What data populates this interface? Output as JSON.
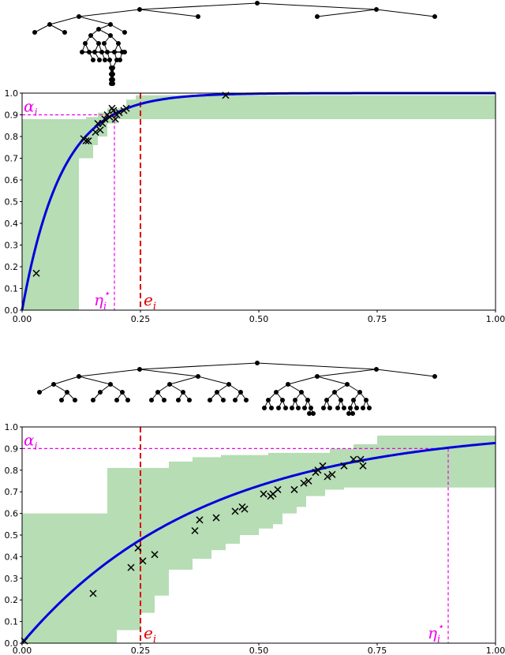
{
  "colors": {
    "fit_line": "#0000dd",
    "band": "#b6ddb4",
    "points": "#000000",
    "alpha_line": "#ee00ee",
    "e_line": "#dd0000"
  },
  "chart_data": [
    {
      "type": "line",
      "xlim": [
        0,
        1
      ],
      "ylim": [
        0,
        1
      ],
      "x_ticks": [
        "0.00",
        "0.25",
        "0.50",
        "0.75",
        "1.00"
      ],
      "y_ticks": [
        "0.0",
        "0.1",
        "0.2",
        "0.3",
        "0.4",
        "0.5",
        "0.6",
        "0.7",
        "0.8",
        "0.9",
        "1.0"
      ],
      "curve_rate": 12,
      "alpha": 0.9,
      "alpha_label": "α",
      "alpha_sub": "i",
      "eta_star": 0.195,
      "eta_label": "η",
      "eta_sub": "i",
      "eta_sup": "⋆",
      "e": 0.25,
      "e_label": "e",
      "e_sub": "i",
      "band_upper": [
        [
          0,
          0.88
        ],
        [
          0.12,
          0.88
        ],
        [
          0.12,
          0.88
        ],
        [
          0.135,
          0.88
        ],
        [
          0.135,
          0.89
        ],
        [
          0.16,
          0.89
        ],
        [
          0.16,
          0.91
        ],
        [
          0.18,
          0.91
        ],
        [
          0.18,
          0.93
        ],
        [
          0.2,
          0.93
        ],
        [
          0.22,
          0.93
        ],
        [
          0.22,
          0.97
        ],
        [
          0.24,
          0.97
        ],
        [
          0.24,
          0.99
        ],
        [
          1,
          0.99
        ]
      ],
      "band_lower": [
        [
          1,
          0.88
        ],
        [
          0.24,
          0.88
        ],
        [
          0.24,
          0.88
        ],
        [
          0.22,
          0.88
        ],
        [
          0.2,
          0.88
        ],
        [
          0.2,
          0.86
        ],
        [
          0.18,
          0.86
        ],
        [
          0.18,
          0.8
        ],
        [
          0.16,
          0.8
        ],
        [
          0.16,
          0.76
        ],
        [
          0.15,
          0.76
        ],
        [
          0.15,
          0.7
        ],
        [
          0.12,
          0.7
        ],
        [
          0.12,
          0.0
        ],
        [
          0,
          0.0
        ]
      ],
      "points": [
        [
          0.03,
          0.17
        ],
        [
          0.13,
          0.79
        ],
        [
          0.135,
          0.78
        ],
        [
          0.14,
          0.78
        ],
        [
          0.155,
          0.82
        ],
        [
          0.16,
          0.86
        ],
        [
          0.165,
          0.83
        ],
        [
          0.17,
          0.86
        ],
        [
          0.175,
          0.88
        ],
        [
          0.18,
          0.9
        ],
        [
          0.185,
          0.89
        ],
        [
          0.19,
          0.93
        ],
        [
          0.193,
          0.92
        ],
        [
          0.197,
          0.88
        ],
        [
          0.2,
          0.9
        ],
        [
          0.205,
          0.91
        ],
        [
          0.215,
          0.92
        ],
        [
          0.22,
          0.93
        ],
        [
          0.43,
          0.99
        ]
      ]
    },
    {
      "type": "line",
      "xlim": [
        0,
        1
      ],
      "ylim": [
        0,
        1
      ],
      "x_ticks": [
        "0.00",
        "0.25",
        "0.50",
        "0.75",
        "1.00"
      ],
      "y_ticks": [
        "0.0",
        "0.1",
        "0.2",
        "0.3",
        "0.4",
        "0.5",
        "0.6",
        "0.7",
        "0.8",
        "0.9",
        "1.0"
      ],
      "curve_rate": 2.6,
      "alpha": 0.9,
      "alpha_label": "α",
      "alpha_sub": "i",
      "eta_star": 0.9,
      "eta_label": "η",
      "eta_sub": "i",
      "eta_sup": "⋆",
      "e": 0.25,
      "e_label": "e",
      "e_sub": "i",
      "band_upper": [
        [
          0,
          0.6
        ],
        [
          0.18,
          0.6
        ],
        [
          0.18,
          0.81
        ],
        [
          0.31,
          0.81
        ],
        [
          0.31,
          0.84
        ],
        [
          0.36,
          0.84
        ],
        [
          0.36,
          0.86
        ],
        [
          0.42,
          0.86
        ],
        [
          0.42,
          0.87
        ],
        [
          0.52,
          0.87
        ],
        [
          0.52,
          0.88
        ],
        [
          0.65,
          0.88
        ],
        [
          0.65,
          0.9
        ],
        [
          0.7,
          0.9
        ],
        [
          0.7,
          0.92
        ],
        [
          0.75,
          0.92
        ],
        [
          0.75,
          0.96
        ],
        [
          1,
          0.96
        ]
      ],
      "band_lower": [
        [
          1,
          0.72
        ],
        [
          0.68,
          0.72
        ],
        [
          0.68,
          0.71
        ],
        [
          0.64,
          0.71
        ],
        [
          0.64,
          0.68
        ],
        [
          0.6,
          0.68
        ],
        [
          0.6,
          0.63
        ],
        [
          0.58,
          0.63
        ],
        [
          0.58,
          0.6
        ],
        [
          0.55,
          0.6
        ],
        [
          0.55,
          0.55
        ],
        [
          0.53,
          0.55
        ],
        [
          0.53,
          0.53
        ],
        [
          0.5,
          0.53
        ],
        [
          0.5,
          0.5
        ],
        [
          0.46,
          0.5
        ],
        [
          0.46,
          0.46
        ],
        [
          0.43,
          0.46
        ],
        [
          0.43,
          0.43
        ],
        [
          0.4,
          0.43
        ],
        [
          0.4,
          0.39
        ],
        [
          0.36,
          0.39
        ],
        [
          0.36,
          0.34
        ],
        [
          0.31,
          0.34
        ],
        [
          0.31,
          0.22
        ],
        [
          0.28,
          0.22
        ],
        [
          0.28,
          0.14
        ],
        [
          0.25,
          0.14
        ],
        [
          0.25,
          0.06
        ],
        [
          0.2,
          0.06
        ],
        [
          0.2,
          0.0
        ],
        [
          0,
          0.0
        ]
      ],
      "points": [
        [
          0.005,
          0.01
        ],
        [
          0.15,
          0.23
        ],
        [
          0.23,
          0.35
        ],
        [
          0.245,
          0.44
        ],
        [
          0.255,
          0.38
        ],
        [
          0.28,
          0.41
        ],
        [
          0.365,
          0.52
        ],
        [
          0.375,
          0.57
        ],
        [
          0.41,
          0.58
        ],
        [
          0.45,
          0.61
        ],
        [
          0.465,
          0.63
        ],
        [
          0.47,
          0.62
        ],
        [
          0.51,
          0.69
        ],
        [
          0.525,
          0.68
        ],
        [
          0.53,
          0.69
        ],
        [
          0.54,
          0.71
        ],
        [
          0.575,
          0.71
        ],
        [
          0.595,
          0.74
        ],
        [
          0.605,
          0.75
        ],
        [
          0.62,
          0.79
        ],
        [
          0.625,
          0.8
        ],
        [
          0.635,
          0.82
        ],
        [
          0.645,
          0.77
        ],
        [
          0.655,
          0.78
        ],
        [
          0.68,
          0.82
        ],
        [
          0.7,
          0.85
        ],
        [
          0.715,
          0.85
        ],
        [
          0.72,
          0.82
        ]
      ]
    }
  ]
}
